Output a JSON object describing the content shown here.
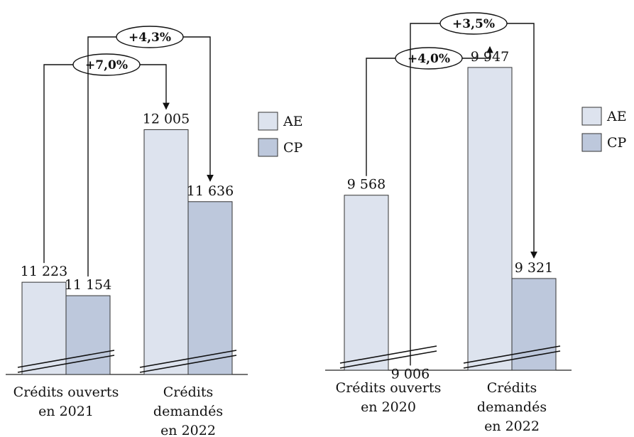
{
  "chart_data": [
    {
      "type": "bar",
      "title": "",
      "xlabel": "",
      "ylabel": "",
      "categories": [
        "Crédits ouverts en 2021",
        "Crédits demandés en 2022"
      ],
      "category_lines": [
        [
          "Crédits ouverts",
          "en 2021"
        ],
        [
          "Crédits",
          "demandés",
          "en 2022"
        ]
      ],
      "series": [
        {
          "name": "AE",
          "values": [
            11223,
            12005
          ],
          "labels": [
            "11 223",
            "12 005"
          ]
        },
        {
          "name": "CP",
          "values": [
            11154,
            11636
          ],
          "labels": [
            "11 154",
            "11 636"
          ]
        }
      ],
      "axis_break": true,
      "legend": {
        "position": "right",
        "labels": [
          "AE",
          "CP"
        ]
      },
      "variations": [
        {
          "series": "AE",
          "label": "+7,0%"
        },
        {
          "series": "CP",
          "label": "+4,3%"
        }
      ]
    },
    {
      "type": "bar",
      "title": "",
      "xlabel": "",
      "ylabel": "",
      "categories": [
        "Crédits ouverts en 2020",
        "Crédits demandés en 2022"
      ],
      "category_lines": [
        [
          "Crédits ouverts",
          "en 2020"
        ],
        [
          "Crédits",
          "demandés",
          "en 2022"
        ]
      ],
      "series": [
        {
          "name": "AE",
          "values": [
            9568,
            9947
          ],
          "labels": [
            "9 568",
            "9 947"
          ]
        },
        {
          "name": "CP",
          "values": [
            9006,
            9321
          ],
          "labels": [
            "9 006",
            "9 321"
          ]
        }
      ],
      "axis_break": true,
      "legend": {
        "position": "right",
        "labels": [
          "AE",
          "CP"
        ]
      },
      "variations": [
        {
          "series": "AE",
          "label": "+4,0%"
        },
        {
          "series": "CP",
          "label": "+3,5%"
        }
      ]
    }
  ],
  "colors": {
    "AE": "#dde3ee",
    "CP": "#bdc8dc",
    "stroke": "#333333"
  }
}
